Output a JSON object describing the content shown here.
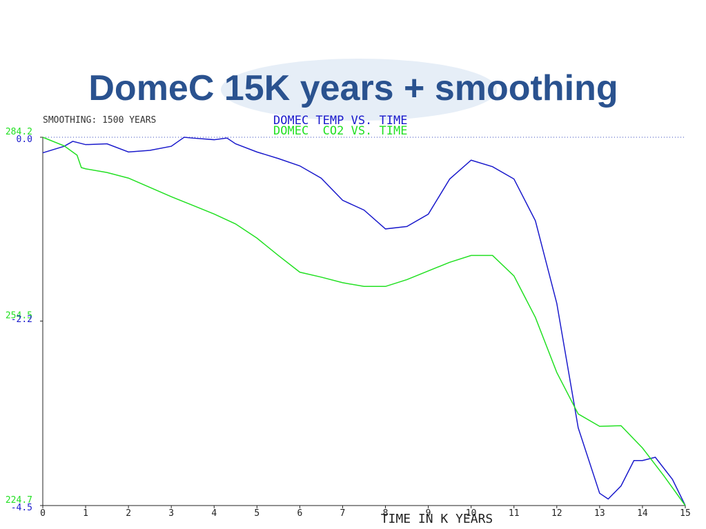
{
  "chart_data": {
    "type": "line",
    "title": "DomeC 15K years + smoothing",
    "subtitle": "SMOOTHING: 1500 YEARS",
    "x_label": "TIME IN K YEARS",
    "xlim": [
      0,
      15
    ],
    "xticks": [
      0,
      1,
      2,
      3,
      4,
      5,
      6,
      7,
      8,
      9,
      10,
      11,
      12,
      13,
      14,
      15
    ],
    "ylim": [
      224.7,
      284.2
    ],
    "yticks": [
      224.7,
      254.5,
      284.2
    ],
    "y2lim": [
      -4.5,
      0
    ],
    "y2ticks": [
      -4.5,
      -2.2,
      {
        "value": 0,
        "label": "0.0"
      }
    ],
    "series": [
      {
        "name": "DOMEC TEMP VS. TIME",
        "color": "#1a1acc",
        "axis": "y2",
        "x": [
          0,
          0.5,
          0.7,
          1,
          1.5,
          2,
          2.5,
          3,
          3.3,
          3.5,
          4,
          4.3,
          4.5,
          5,
          5.5,
          6,
          6.5,
          7,
          7.5,
          8,
          8.5,
          9,
          9.5,
          10,
          10.5,
          11,
          11.5,
          12,
          12.5,
          13,
          13.2,
          13.5,
          13.8,
          14,
          14.3,
          14.7,
          15
        ],
        "values": [
          -0.19,
          -0.11,
          -0.05,
          -0.09,
          -0.08,
          -0.18,
          -0.16,
          -0.11,
          0,
          -0.01,
          -0.03,
          -0.01,
          -0.08,
          -0.18,
          -0.26,
          -0.35,
          -0.5,
          -0.77,
          -0.89,
          -1.12,
          -1.09,
          -0.94,
          -0.51,
          -0.28,
          -0.36,
          -0.51,
          -1.02,
          -2.03,
          -3.55,
          -4.35,
          -4.42,
          -4.26,
          -3.95,
          -3.95,
          -3.91,
          -4.18,
          -4.5
        ]
      },
      {
        "name": "DOMEC  CO2 VS. TIME",
        "color": "#22e022",
        "x": [
          0,
          0.5,
          0.8,
          0.9,
          1,
          1.5,
          2,
          2.5,
          3,
          3.5,
          4,
          4.5,
          5,
          5.5,
          6,
          6.5,
          7,
          7.5,
          8,
          8.5,
          9,
          9.5,
          10,
          10.5,
          11,
          11.5,
          12,
          12.5,
          13,
          13.5,
          14,
          14.5,
          15
        ],
        "values": [
          284.2,
          282.8,
          281.3,
          279.3,
          279.1,
          278.5,
          277.6,
          276.1,
          274.6,
          273.2,
          271.8,
          270.2,
          267.9,
          265.1,
          262.4,
          261.6,
          260.7,
          260.1,
          260.1,
          261.2,
          262.6,
          264.0,
          265.1,
          265.1,
          261.8,
          255.1,
          246.2,
          239.5,
          237.5,
          237.6,
          234.0,
          229.5,
          224.7
        ]
      }
    ]
  }
}
